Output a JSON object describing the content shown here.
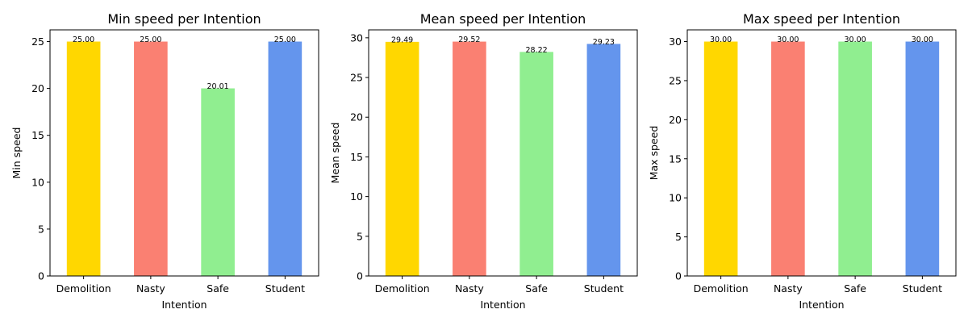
{
  "chart_data": [
    {
      "type": "bar",
      "title": "Min speed per Intention",
      "xlabel": "Intention",
      "ylabel": "Min speed",
      "categories": [
        "Demolition",
        "Nasty",
        "Safe",
        "Student"
      ],
      "values": [
        25.0,
        25.0,
        20.01,
        25.0
      ],
      "value_labels": [
        "25.00",
        "25.00",
        "20.01",
        "25.00"
      ],
      "ylim": [
        0,
        26.25
      ],
      "yticks": [
        0,
        5,
        10,
        15,
        20,
        25
      ],
      "grid": false,
      "colors": [
        "#FFD700",
        "#FA8072",
        "#90EE90",
        "#6495ED"
      ]
    },
    {
      "type": "bar",
      "title": "Mean speed per Intention",
      "xlabel": "Intention",
      "ylabel": "Mean speed",
      "categories": [
        "Demolition",
        "Nasty",
        "Safe",
        "Student"
      ],
      "values": [
        29.49,
        29.52,
        28.22,
        29.23
      ],
      "value_labels": [
        "29.49",
        "29.52",
        "28.22",
        "29.23"
      ],
      "ylim": [
        0,
        31.0
      ],
      "yticks": [
        0,
        5,
        10,
        15,
        20,
        25,
        30
      ],
      "grid": false,
      "colors": [
        "#FFD700",
        "#FA8072",
        "#90EE90",
        "#6495ED"
      ]
    },
    {
      "type": "bar",
      "title": "Max speed per Intention",
      "xlabel": "Intention",
      "ylabel": "Max speed",
      "categories": [
        "Demolition",
        "Nasty",
        "Safe",
        "Student"
      ],
      "values": [
        30.0,
        30.0,
        30.0,
        30.0
      ],
      "value_labels": [
        "30.00",
        "30.00",
        "30.00",
        "30.00"
      ],
      "ylim": [
        0,
        31.5
      ],
      "yticks": [
        0,
        5,
        10,
        15,
        20,
        25,
        30
      ],
      "grid": false,
      "colors": [
        "#FFD700",
        "#FA8072",
        "#90EE90",
        "#6495ED"
      ]
    }
  ]
}
